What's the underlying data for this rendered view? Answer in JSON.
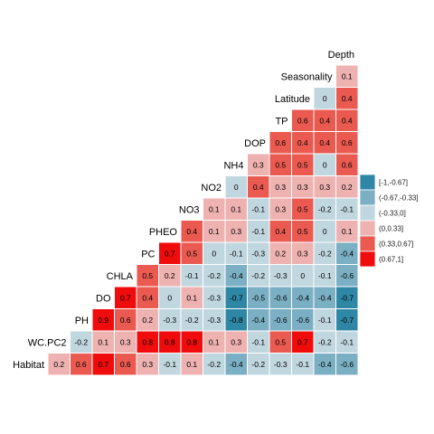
{
  "chart_data": {
    "type": "heatmap",
    "variables": [
      "Habitat",
      "WC.PC2",
      "PH",
      "DO",
      "CHLA",
      "PC",
      "PHEO",
      "NO3",
      "NO2",
      "NH4",
      "DOP",
      "TP",
      "Latitude",
      "Seasonality",
      "Depth"
    ],
    "rows": [
      {
        "var": "Habitat",
        "values": [
          "0.2",
          "0.6",
          "0.7",
          "0.6",
          "0.3",
          "-0.1",
          "0.1",
          "-0.2",
          "-0.4",
          "-0.2",
          "-0.3",
          "-0.1",
          "-0.4",
          "-0.6"
        ]
      },
      {
        "var": "WC.PC2",
        "values": [
          "-0.2",
          "0.1",
          "0.3",
          "0.8",
          "0.8",
          "0.8",
          "0.1",
          "0.3",
          "-0.1",
          "0.5",
          "0.7",
          "-0.2",
          "-0.1"
        ]
      },
      {
        "var": "PH",
        "values": [
          "0.9",
          "0.6",
          "0.2",
          "-0.3",
          "-0.2",
          "-0.3",
          "-0.8",
          "-0.4",
          "-0.6",
          "-0.6",
          "-0.1",
          "-0.7"
        ]
      },
      {
        "var": "DO",
        "values": [
          "0.7",
          "0.4",
          "0",
          "0.1",
          "-0.3",
          "-0.7",
          "-0.5",
          "-0.6",
          "-0.4",
          "-0.4",
          "-0.7"
        ]
      },
      {
        "var": "CHLA",
        "values": [
          "0.5",
          "0.2",
          "-0.1",
          "-0.2",
          "-0.4",
          "-0.2",
          "-0.3",
          "0",
          "-0.1",
          "-0.6"
        ]
      },
      {
        "var": "PC",
        "values": [
          "0.7",
          "0.5",
          "0",
          "-0.1",
          "-0.3",
          "0.2",
          "0.3",
          "-0.2",
          "-0.4"
        ]
      },
      {
        "var": "PHEO",
        "values": [
          "0.4",
          "0.1",
          "0.3",
          "-0.1",
          "0.4",
          "0.5",
          "0",
          "0.1"
        ]
      },
      {
        "var": "NO3",
        "values": [
          "0.1",
          "0.1",
          "-0.1",
          "0.3",
          "0.5",
          "-0.2",
          "-0.1"
        ]
      },
      {
        "var": "NO2",
        "values": [
          "0",
          "0.4",
          "0.3",
          "0.3",
          "0.3",
          "0.2"
        ]
      },
      {
        "var": "NH4",
        "values": [
          "0.3",
          "0.5",
          "0.5",
          "0",
          "0.6"
        ]
      },
      {
        "var": "DOP",
        "values": [
          "0.6",
          "0.4",
          "0.4",
          "0.6"
        ]
      },
      {
        "var": "TP",
        "values": [
          "0.6",
          "0.4",
          "0.4"
        ]
      },
      {
        "var": "Latitude",
        "values": [
          "0",
          "0.4"
        ]
      },
      {
        "var": "Seasonality",
        "values": [
          "0.1"
        ]
      },
      {
        "var": "Depth",
        "values": []
      }
    ],
    "legend": {
      "position": "right",
      "bins": [
        {
          "label": "[-1,-0.67]",
          "color": "#2e87a5"
        },
        {
          "label": "(-0.67,-0.33]",
          "color": "#7aafc4"
        },
        {
          "label": "(-0.33,0]",
          "color": "#c1d7e0"
        },
        {
          "label": "(0,0.33]",
          "color": "#eeb2b0"
        },
        {
          "label": "(0.33,0.67]",
          "color": "#ea5a50"
        },
        {
          "label": "(0.67,1]",
          "color": "#f00c0c"
        }
      ]
    },
    "grid": false,
    "title": "",
    "xlabel": "",
    "ylabel": ""
  }
}
